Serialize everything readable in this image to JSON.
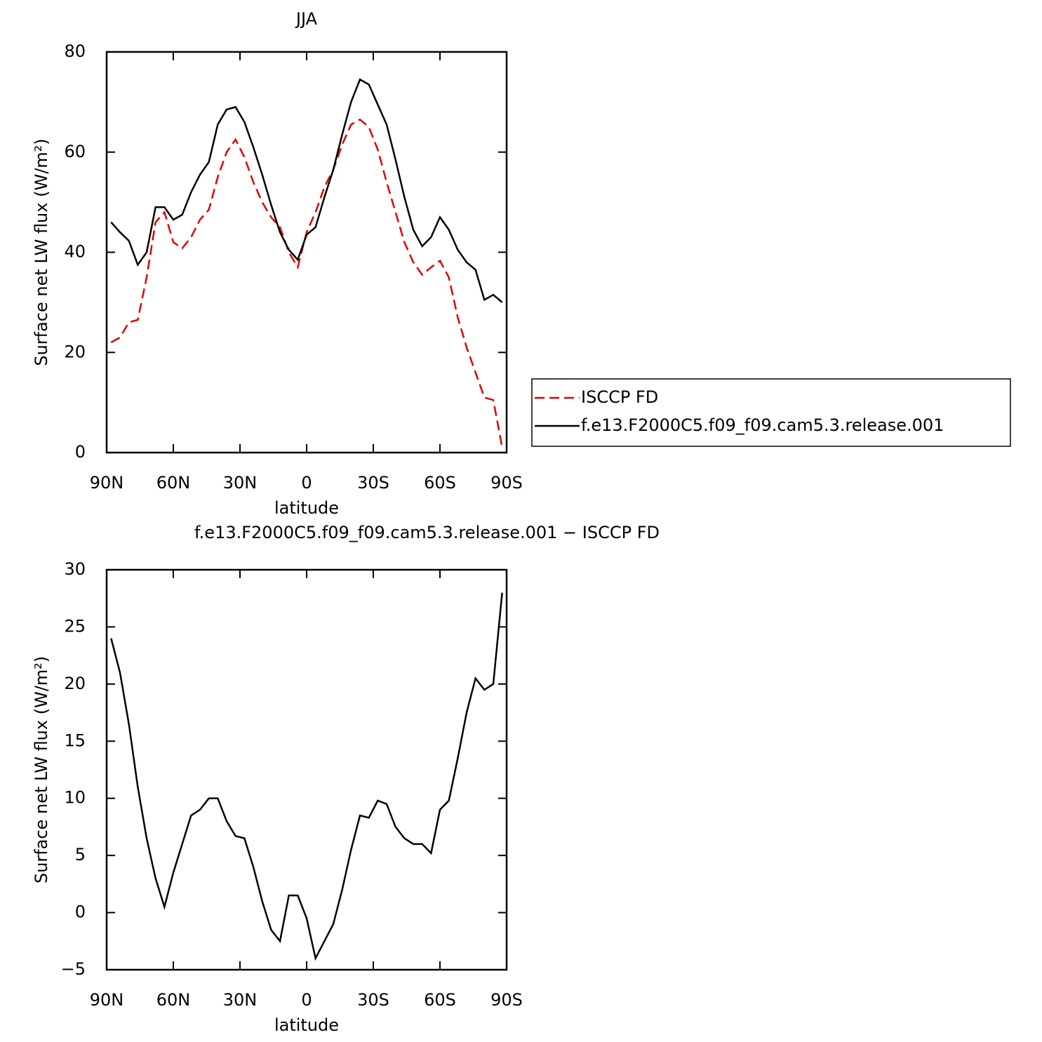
{
  "chart_data": [
    {
      "type": "line",
      "title": "JJA",
      "x_label": "latitude",
      "y_label": "Surface net LW flux (W/m²)",
      "x": [
        88,
        84,
        80,
        76,
        72,
        68,
        64,
        60,
        56,
        52,
        48,
        44,
        40,
        36,
        32,
        28,
        24,
        20,
        16,
        12,
        8,
        4,
        0,
        -4,
        -8,
        -12,
        -16,
        -20,
        -24,
        -28,
        -32,
        -36,
        -40,
        -44,
        -48,
        -52,
        -56,
        -60,
        -64,
        -68,
        -72,
        -76,
        -80,
        -84,
        -88
      ],
      "series": [
        {
          "name": "ISCCP FD",
          "color": "#e00000",
          "dash": true,
          "values": [
            22,
            23,
            26,
            26.5,
            35,
            46,
            48,
            42,
            40.8,
            43,
            46.5,
            48.5,
            55,
            60,
            62.5,
            59,
            54,
            50,
            47,
            45,
            40,
            37,
            44,
            48,
            53,
            56.5,
            61.5,
            65.5,
            66.5,
            65,
            60.5,
            54,
            48,
            42,
            38,
            35.5,
            37,
            38.3,
            35,
            27,
            21,
            16,
            11,
            10.5,
            1
          ]
        },
        {
          "name": "f.e13.F2000C5.f09_f09.cam5.3.release.001",
          "color": "#000000",
          "dash": false,
          "values": [
            46,
            44,
            42.3,
            37.5,
            40,
            49,
            49,
            46.5,
            47.5,
            52,
            55.5,
            58,
            65.5,
            68.5,
            69,
            66,
            61,
            55.5,
            49.5,
            44,
            40.5,
            38.5,
            43.5,
            45,
            51,
            56.5,
            63.5,
            70,
            74.5,
            73.5,
            69.5,
            65.5,
            58.5,
            51,
            44.5,
            41.2,
            43,
            47,
            44.5,
            40.5,
            38,
            36.5,
            30.5,
            31.5,
            30
          ]
        }
      ],
      "xlim": [
        90,
        -90
      ],
      "xticks": [
        {
          "value": 90,
          "label": "90N"
        },
        {
          "value": 60,
          "label": "60N"
        },
        {
          "value": 30,
          "label": "30N"
        },
        0,
        {
          "value": -30,
          "label": "30S"
        },
        {
          "value": -60,
          "label": "60S"
        },
        {
          "value": -90,
          "label": "90S"
        }
      ],
      "ylim": [
        0,
        80
      ],
      "yticks": [
        0,
        20,
        40,
        60,
        80
      ],
      "legend": true
    },
    {
      "type": "line",
      "title": "f.e13.F2000C5.f09_f09.cam5.3.release.001 − ISCCP FD",
      "x_label": "latitude",
      "y_label": "Surface net LW flux (W/m²)",
      "x": [
        88,
        84,
        80,
        76,
        72,
        68,
        64,
        60,
        56,
        52,
        48,
        44,
        40,
        36,
        32,
        28,
        24,
        20,
        16,
        12,
        8,
        4,
        0,
        -4,
        -8,
        -12,
        -16,
        -20,
        -24,
        -28,
        -32,
        -36,
        -40,
        -44,
        -48,
        -52,
        -56,
        -60,
        -64,
        -68,
        -72,
        -76,
        -80,
        -84,
        -88
      ],
      "series": [
        {
          "color": "#000000",
          "dash": false,
          "values": [
            24,
            21,
            16.5,
            11,
            6.5,
            3,
            0.5,
            3.5,
            6,
            8.5,
            9,
            10,
            10,
            8,
            6.7,
            6.5,
            4,
            1,
            -1.5,
            -2.5,
            1.5,
            1.5,
            -0.5,
            -4,
            -2.5,
            -1,
            2,
            5.5,
            8.5,
            8.3,
            9.8,
            9.5,
            7.5,
            6.5,
            6,
            6,
            5.2,
            9,
            9.8,
            13.5,
            17.5,
            20.5,
            19.5,
            20,
            28
          ]
        }
      ],
      "xlim": [
        90,
        -90
      ],
      "xticks": [
        {
          "value": 90,
          "label": "90N"
        },
        {
          "value": 60,
          "label": "60N"
        },
        {
          "value": 30,
          "label": "30N"
        },
        0,
        {
          "value": -30,
          "label": "30S"
        },
        {
          "value": -60,
          "label": "60S"
        },
        {
          "value": -90,
          "label": "90S"
        }
      ],
      "ylim": [
        -5,
        30
      ],
      "yticks": [
        {
          "value": -5,
          "label": "−5"
        },
        0,
        5,
        10,
        15,
        20,
        25,
        30
      ],
      "legend": false
    }
  ]
}
